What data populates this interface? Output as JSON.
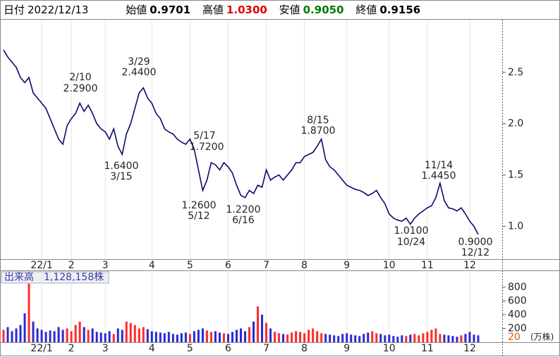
{
  "header": {
    "date_label": "日付",
    "date": "2022/12/13",
    "open_label": "始値",
    "open": "0.9701",
    "high_label": "高値",
    "high": "1.0300",
    "low_label": "安値",
    "low": "0.9050",
    "close_label": "終値",
    "close": "0.9156"
  },
  "annotations": [
    {
      "date": "2/10",
      "price": "2.2900"
    },
    {
      "date": "3/29",
      "price": "2.4400"
    },
    {
      "date": "3/15",
      "price": "1.6400"
    },
    {
      "date": "5/17",
      "price": "1.7200"
    },
    {
      "date": "5/12",
      "price": "1.2600"
    },
    {
      "date": "6/16",
      "price": "1.2200"
    },
    {
      "date": "8/15",
      "price": "1.8700"
    },
    {
      "date": "11/14",
      "price": "1.4450"
    },
    {
      "date": "10/24",
      "price": "1.0100"
    },
    {
      "date": "12/12",
      "price": "0.9000"
    }
  ],
  "volume_panel": {
    "label": "出来高　1,128,158株",
    "min_label": "20",
    "unit": "(万株)"
  },
  "chart_data": {
    "type": "line",
    "categories": [
      null,
      null,
      null,
      null,
      null,
      null,
      null,
      null,
      null,
      "22/1",
      null,
      null,
      null,
      null,
      null,
      null,
      "2",
      null,
      null,
      null,
      null,
      null,
      null,
      null,
      "3",
      null,
      null,
      null,
      null,
      null,
      null,
      null,
      null,
      null,
      null,
      "4",
      null,
      null,
      null,
      null,
      null,
      null,
      null,
      null,
      "5",
      null,
      null,
      null,
      null,
      null,
      null,
      null,
      null,
      "6",
      null,
      null,
      null,
      null,
      null,
      null,
      null,
      null,
      "7",
      null,
      null,
      null,
      null,
      null,
      null,
      null,
      null,
      "8",
      null,
      null,
      null,
      null,
      null,
      null,
      null,
      null,
      null,
      "9",
      null,
      null,
      null,
      null,
      null,
      null,
      null,
      null,
      null,
      "10",
      null,
      null,
      null,
      null,
      null,
      null,
      null,
      null,
      "11",
      null,
      null,
      null,
      null,
      null,
      null,
      null,
      null,
      null,
      "12",
      null,
      null
    ],
    "series": [
      {
        "color": "#0a0a6e",
        "values": [
          2.72,
          2.65,
          2.6,
          2.55,
          2.45,
          2.4,
          2.45,
          2.3,
          2.25,
          2.2,
          2.15,
          2.05,
          1.95,
          1.85,
          1.8,
          1.98,
          2.05,
          2.1,
          2.2,
          2.12,
          2.18,
          2.1,
          2.0,
          1.95,
          1.92,
          1.85,
          1.95,
          1.78,
          1.7,
          1.9,
          2.0,
          2.15,
          2.3,
          2.35,
          2.25,
          2.2,
          2.1,
          2.05,
          1.95,
          1.92,
          1.9,
          1.85,
          1.82,
          1.8,
          1.85,
          1.75,
          1.55,
          1.35,
          1.45,
          1.62,
          1.6,
          1.55,
          1.62,
          1.58,
          1.52,
          1.4,
          1.3,
          1.28,
          1.35,
          1.32,
          1.4,
          1.38,
          1.55,
          1.45,
          1.48,
          1.5,
          1.45,
          1.5,
          1.55,
          1.62,
          1.62,
          1.68,
          1.7,
          1.72,
          1.78,
          1.85,
          1.65,
          1.58,
          1.55,
          1.5,
          1.45,
          1.4,
          1.38,
          1.36,
          1.35,
          1.33,
          1.3,
          1.32,
          1.35,
          1.28,
          1.22,
          1.12,
          1.08,
          1.06,
          1.05,
          1.08,
          1.02,
          1.08,
          1.12,
          1.15,
          1.18,
          1.2,
          1.28,
          1.42,
          1.25,
          1.18,
          1.17,
          1.15,
          1.18,
          1.12,
          1.05,
          1.0,
          0.92
        ]
      }
    ],
    "ylim": [
      0.68,
      3.0
    ],
    "yticks": [
      {
        "value": 1,
        "label": "1.0"
      },
      1.5,
      {
        "value": 2,
        "label": "2.0"
      },
      2.5
    ],
    "volume": {
      "values": [
        180,
        220,
        160,
        200,
        250,
        420,
        850,
        300,
        200,
        180,
        150,
        170,
        160,
        220,
        180,
        200,
        160,
        250,
        300,
        220,
        180,
        200,
        150,
        140,
        130,
        160,
        120,
        200,
        180,
        300,
        280,
        250,
        200,
        220,
        190,
        160,
        150,
        140,
        130,
        150,
        120,
        110,
        130,
        140,
        120,
        160,
        180,
        200,
        170,
        150,
        160,
        140,
        130,
        120,
        150,
        180,
        200,
        160,
        220,
        300,
        520,
        400,
        280,
        200,
        150,
        130,
        120,
        110,
        140,
        160,
        150,
        130,
        180,
        200,
        160,
        130,
        120,
        110,
        100,
        90,
        120,
        130,
        110,
        100,
        90,
        120,
        140,
        160,
        130,
        120,
        100,
        110,
        90,
        80,
        100,
        90,
        110,
        120,
        100,
        130,
        150,
        180,
        200,
        120,
        110,
        100,
        90,
        80,
        100,
        120,
        150,
        110,
        100
      ],
      "up_color": "#ff2a2a",
      "down_color": "#2a2ad0",
      "ylim": [
        0,
        880
      ],
      "yticks": [
        200,
        400,
        600,
        800
      ]
    }
  }
}
